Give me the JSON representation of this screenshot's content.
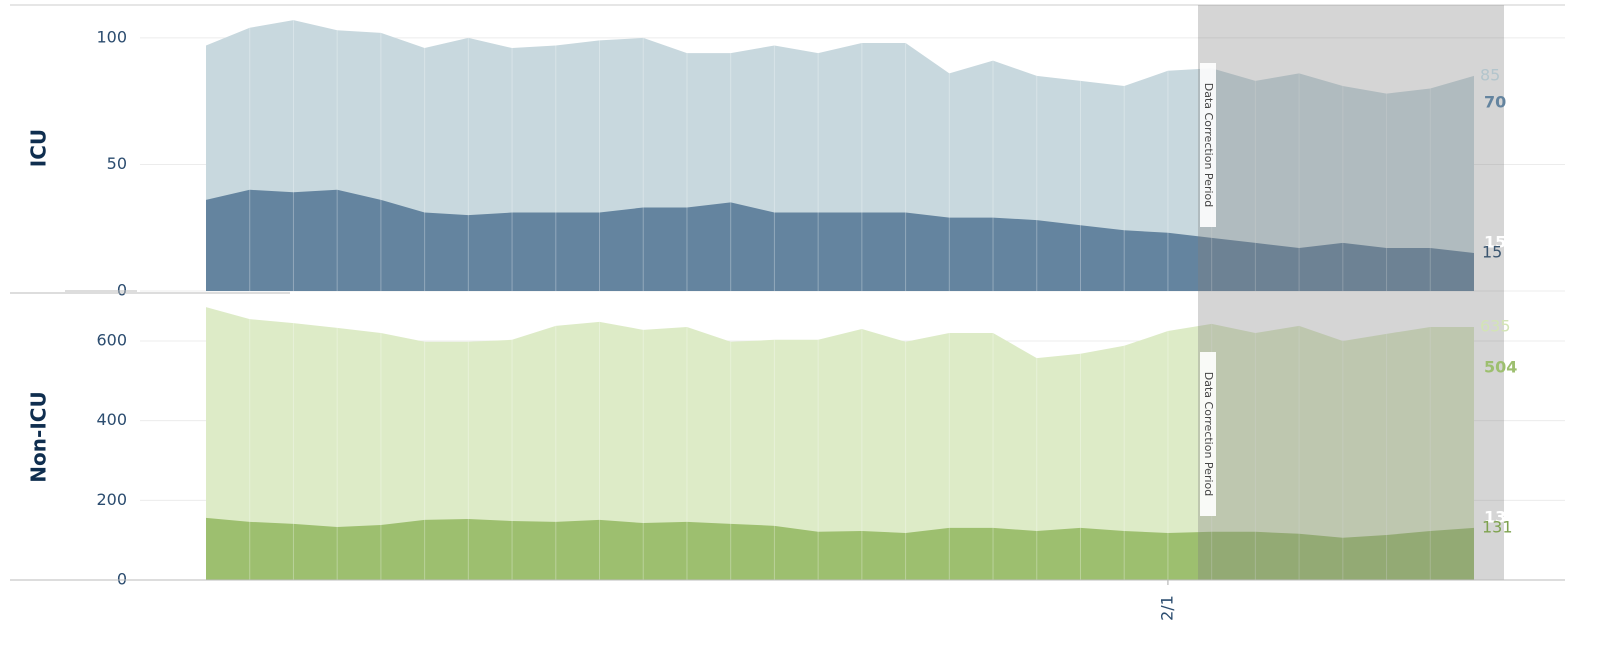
{
  "chart_data": [
    {
      "type": "area",
      "ylabel": "ICU",
      "categories": [
        null,
        null,
        null,
        null,
        null,
        null,
        null,
        null,
        null,
        null,
        null,
        null,
        null,
        null,
        null,
        null,
        null,
        null,
        null,
        null,
        null,
        null,
        null,
        null,
        null,
        null,
        null,
        null,
        null,
        null
      ],
      "series": [
        {
          "color": "#c8d8de",
          "values": [
            97,
            104,
            107,
            103,
            102,
            96,
            100,
            96,
            97,
            99,
            100,
            94,
            94,
            97,
            94,
            98,
            98,
            86,
            91,
            85,
            83,
            81,
            87,
            88,
            83,
            86,
            81,
            78,
            80,
            85
          ]
        },
        {
          "color": "#64849f",
          "values": [
            36,
            40,
            39,
            40,
            36,
            31,
            30,
            31,
            31,
            31,
            33,
            33,
            35,
            31,
            31,
            31,
            31,
            29,
            29,
            28,
            26,
            24,
            23,
            21,
            19,
            17,
            19,
            17,
            17,
            15
          ]
        }
      ],
      "end_labels": [
        85,
        70,
        15,
        15
      ],
      "annotation": "Data Correction Period",
      "ylim": [
        0,
        113
      ],
      "yticks": [
        0,
        50,
        100
      ],
      "grid": true
    },
    {
      "type": "area",
      "ylabel": "Non-ICU",
      "categories": [
        null,
        null,
        null,
        null,
        null,
        null,
        null,
        null,
        null,
        null,
        null,
        null,
        null,
        null,
        null,
        null,
        null,
        null,
        null,
        null,
        null,
        null,
        "2/1",
        null,
        null,
        null,
        null,
        null,
        null,
        null
      ],
      "series": [
        {
          "color": "#ddebc7",
          "values": [
            685,
            655,
            645,
            633,
            620,
            598,
            598,
            603,
            638,
            648,
            628,
            635,
            598,
            603,
            603,
            630,
            598,
            620,
            620,
            557,
            568,
            588,
            625,
            643,
            620,
            638,
            600,
            618,
            635,
            635
          ]
        },
        {
          "color": "#9dbf6f",
          "values": [
            156,
            146,
            141,
            133,
            138,
            151,
            153,
            148,
            146,
            151,
            143,
            146,
            141,
            136,
            121,
            123,
            118,
            131,
            131,
            123,
            131,
            123,
            118,
            121,
            121,
            116,
            106,
            113,
            123,
            131
          ]
        }
      ],
      "end_labels": [
        635,
        504,
        131,
        131
      ],
      "annotation": "Data Correction Period",
      "ylim": [
        0,
        718
      ],
      "yticks": [
        0,
        200,
        400,
        600
      ],
      "grid": true
    }
  ]
}
